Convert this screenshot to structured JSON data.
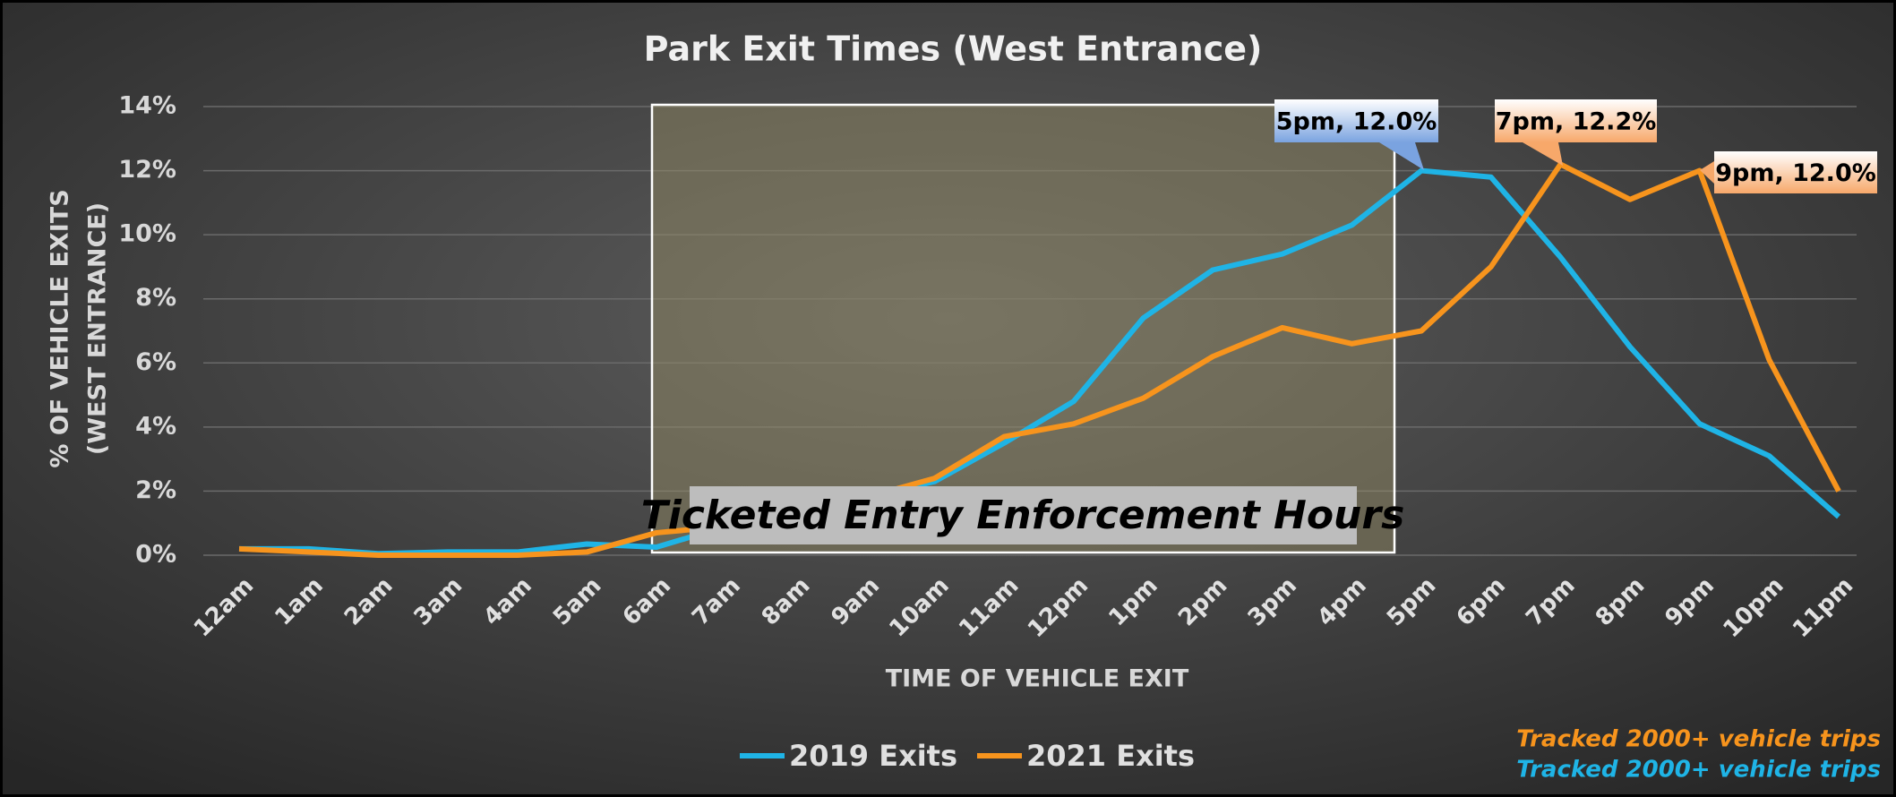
{
  "chart_data": {
    "type": "line",
    "title": "Park Exit Times (West Entrance)",
    "x_label": "TIME OF VEHICLE EXIT",
    "y_label": [
      "% OF VEHICLE EXITS",
      "(WEST ENTRANCE)"
    ],
    "categories": [
      "12am",
      "1am",
      "2am",
      "3am",
      "4am",
      "5am",
      "6am",
      "7am",
      "8am",
      "9am",
      "10am",
      "11am",
      "12pm",
      "1pm",
      "2pm",
      "3pm",
      "4pm",
      "5pm",
      "6pm",
      "7pm",
      "8pm",
      "9pm",
      "10pm",
      "11pm"
    ],
    "series": [
      {
        "name": "2019 Exits",
        "color": "#1fb4e6",
        "values": [
          0.2,
          0.2,
          0.05,
          0.1,
          0.1,
          0.35,
          0.25,
          0.9,
          1.3,
          1.8,
          2.3,
          3.5,
          4.8,
          7.4,
          8.9,
          9.4,
          10.3,
          12.0,
          11.8,
          9.3,
          6.5,
          4.1,
          3.1,
          1.2
        ]
      },
      {
        "name": "2021 Exits",
        "color": "#f7941d",
        "values": [
          0.2,
          0.1,
          0.0,
          0.0,
          0.0,
          0.1,
          0.7,
          0.9,
          1.2,
          1.8,
          2.4,
          3.7,
          4.1,
          4.9,
          6.2,
          7.1,
          6.6,
          7.0,
          9.0,
          12.2,
          11.1,
          12.0,
          6.1,
          2.0
        ]
      }
    ],
    "ylim": [
      0,
      14
    ],
    "yticks": [
      {
        "value": 0,
        "label": "0%"
      },
      {
        "value": 2,
        "label": "2%"
      },
      {
        "value": 4,
        "label": "4%"
      },
      {
        "value": 6,
        "label": "6%"
      },
      {
        "value": 8,
        "label": "8%"
      },
      {
        "value": 10,
        "label": "10%"
      },
      {
        "value": 12,
        "label": "12%"
      },
      {
        "value": 14,
        "label": "14%"
      }
    ],
    "grid": true,
    "legend": "bottom",
    "shaded_region_label": "Ticketed Entry Enforcement Hours",
    "annotations": [
      "5pm, 12.0%",
      "7pm, 12.2%",
      "9pm, 12.0%"
    ],
    "notes": [
      {
        "text": "Tracked 2000+ vehicle trips",
        "color": "#f7941d"
      },
      {
        "text": "Tracked 2000+ vehicle trips",
        "color": "#1fb4e6"
      }
    ]
  }
}
